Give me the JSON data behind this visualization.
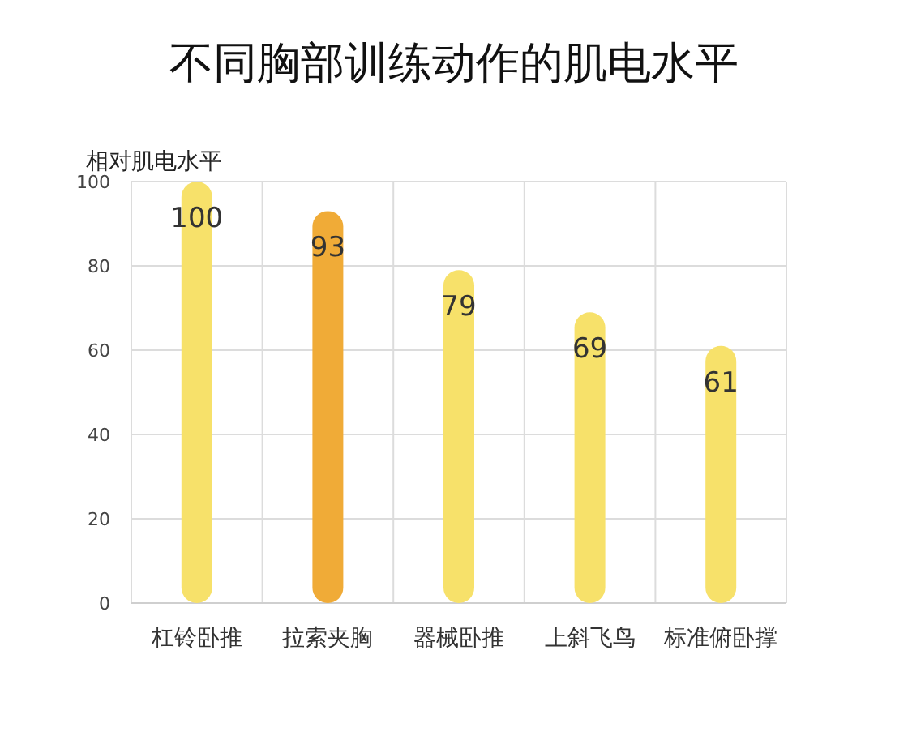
{
  "chart_data": {
    "type": "bar",
    "title": "不同胸部训练动作的肌电水平",
    "ylabel": "相对肌电水平",
    "categories": [
      "杠铃卧推",
      "拉索夹胸",
      "器械卧推",
      "上斜飞鸟",
      "标准俯卧撑"
    ],
    "values": [
      100,
      93,
      79,
      69,
      61
    ],
    "colors": [
      "#f7e16a",
      "#f0ab37",
      "#f7e16a",
      "#f7e16a",
      "#f7e16a"
    ],
    "ylim": [
      0,
      100
    ],
    "yticks": [
      0,
      20,
      40,
      60,
      80,
      100
    ],
    "grid": true,
    "data_labels": true
  }
}
